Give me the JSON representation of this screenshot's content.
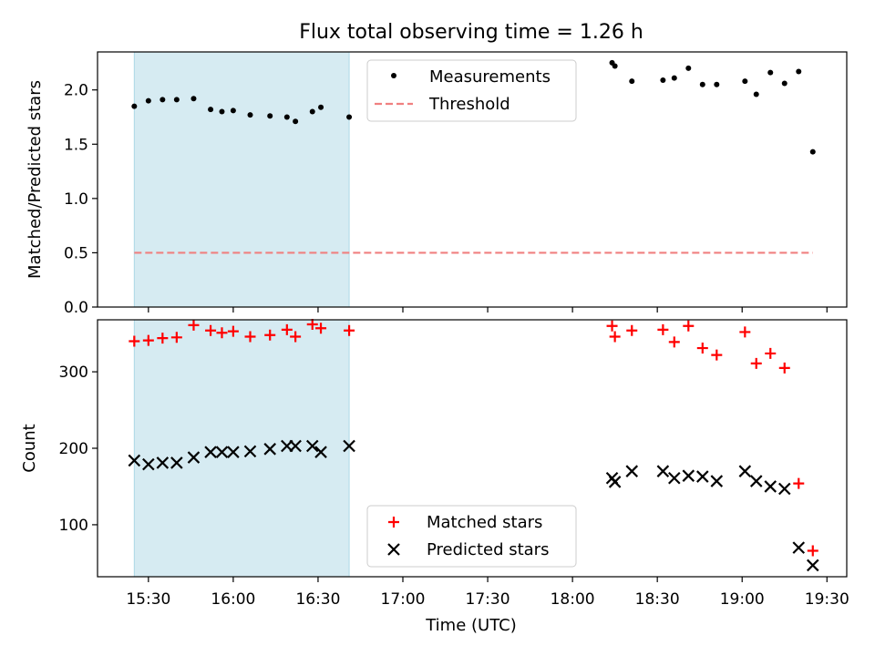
{
  "chart_data": {
    "title": "Flux total observing time = 1.26 h",
    "xlabel": "Time (UTC)",
    "x_ticks": [
      "15:30",
      "16:00",
      "16:30",
      "17:00",
      "17:30",
      "18:00",
      "18:30",
      "19:00",
      "19:30"
    ],
    "xlim": [
      "15:12",
      "19:37"
    ],
    "shaded_interval": [
      "15:25",
      "16:41"
    ],
    "shaded_color": "#add8e6",
    "panels": [
      {
        "type": "scatter",
        "ylabel": "Matched/Predicted stars",
        "ylim": [
          0.0,
          2.35
        ],
        "y_ticks": [
          "0.0",
          "0.5",
          "1.0",
          "1.5",
          "2.0"
        ],
        "legend_position": "upper-center",
        "series": [
          {
            "name": "Measurements",
            "marker": "dot",
            "color": "#000000",
            "points": [
              {
                "x": "15:25",
                "y": 1.85
              },
              {
                "x": "15:30",
                "y": 1.9
              },
              {
                "x": "15:35",
                "y": 1.91
              },
              {
                "x": "15:40",
                "y": 1.91
              },
              {
                "x": "15:46",
                "y": 1.92
              },
              {
                "x": "15:52",
                "y": 1.82
              },
              {
                "x": "15:56",
                "y": 1.8
              },
              {
                "x": "16:00",
                "y": 1.81
              },
              {
                "x": "16:06",
                "y": 1.77
              },
              {
                "x": "16:13",
                "y": 1.76
              },
              {
                "x": "16:19",
                "y": 1.75
              },
              {
                "x": "16:22",
                "y": 1.71
              },
              {
                "x": "16:28",
                "y": 1.8
              },
              {
                "x": "16:31",
                "y": 1.84
              },
              {
                "x": "16:41",
                "y": 1.75
              },
              {
                "x": "18:14",
                "y": 2.25
              },
              {
                "x": "18:15",
                "y": 2.22
              },
              {
                "x": "18:21",
                "y": 2.08
              },
              {
                "x": "18:32",
                "y": 2.09
              },
              {
                "x": "18:36",
                "y": 2.11
              },
              {
                "x": "18:41",
                "y": 2.2
              },
              {
                "x": "18:46",
                "y": 2.05
              },
              {
                "x": "18:51",
                "y": 2.05
              },
              {
                "x": "19:01",
                "y": 2.08
              },
              {
                "x": "19:05",
                "y": 1.96
              },
              {
                "x": "19:10",
                "y": 2.16
              },
              {
                "x": "19:15",
                "y": 2.06
              },
              {
                "x": "19:20",
                "y": 2.17
              },
              {
                "x": "19:25",
                "y": 1.43
              }
            ]
          },
          {
            "name": "Threshold",
            "line": "dashed",
            "color": "#f08080",
            "points": [
              {
                "x": "15:25",
                "y": 0.5
              },
              {
                "x": "19:25",
                "y": 0.5
              }
            ]
          }
        ]
      },
      {
        "type": "scatter",
        "ylabel": "Count",
        "ylim": [
          32,
          368
        ],
        "y_ticks": [
          "100",
          "200",
          "300"
        ],
        "legend_position": "lower-center",
        "series": [
          {
            "name": "Matched stars",
            "marker": "plus",
            "color": "#ff0000",
            "points": [
              {
                "x": "15:25",
                "y": 340
              },
              {
                "x": "15:30",
                "y": 341
              },
              {
                "x": "15:35",
                "y": 344
              },
              {
                "x": "15:40",
                "y": 345
              },
              {
                "x": "15:46",
                "y": 361
              },
              {
                "x": "15:52",
                "y": 354
              },
              {
                "x": "15:56",
                "y": 351
              },
              {
                "x": "16:00",
                "y": 353
              },
              {
                "x": "16:06",
                "y": 346
              },
              {
                "x": "16:13",
                "y": 348
              },
              {
                "x": "16:19",
                "y": 355
              },
              {
                "x": "16:22",
                "y": 346
              },
              {
                "x": "16:28",
                "y": 362
              },
              {
                "x": "16:31",
                "y": 357
              },
              {
                "x": "16:41",
                "y": 354
              },
              {
                "x": "18:14",
                "y": 360
              },
              {
                "x": "18:15",
                "y": 346
              },
              {
                "x": "18:21",
                "y": 354
              },
              {
                "x": "18:32",
                "y": 355
              },
              {
                "x": "18:36",
                "y": 339
              },
              {
                "x": "18:41",
                "y": 360
              },
              {
                "x": "18:46",
                "y": 331
              },
              {
                "x": "18:51",
                "y": 322
              },
              {
                "x": "19:01",
                "y": 352
              },
              {
                "x": "19:05",
                "y": 311
              },
              {
                "x": "19:10",
                "y": 324
              },
              {
                "x": "19:15",
                "y": 305
              },
              {
                "x": "19:20",
                "y": 154
              },
              {
                "x": "19:25",
                "y": 66
              }
            ]
          },
          {
            "name": "Predicted stars",
            "marker": "x",
            "color": "#000000",
            "points": [
              {
                "x": "15:25",
                "y": 184
              },
              {
                "x": "15:30",
                "y": 179
              },
              {
                "x": "15:35",
                "y": 181
              },
              {
                "x": "15:40",
                "y": 181
              },
              {
                "x": "15:46",
                "y": 188
              },
              {
                "x": "15:52",
                "y": 195
              },
              {
                "x": "15:56",
                "y": 195
              },
              {
                "x": "16:00",
                "y": 195
              },
              {
                "x": "16:06",
                "y": 196
              },
              {
                "x": "16:13",
                "y": 199
              },
              {
                "x": "16:19",
                "y": 203
              },
              {
                "x": "16:22",
                "y": 203
              },
              {
                "x": "16:28",
                "y": 203
              },
              {
                "x": "16:31",
                "y": 195
              },
              {
                "x": "16:41",
                "y": 203
              },
              {
                "x": "18:14",
                "y": 161
              },
              {
                "x": "18:15",
                "y": 156
              },
              {
                "x": "18:21",
                "y": 170
              },
              {
                "x": "18:32",
                "y": 170
              },
              {
                "x": "18:36",
                "y": 161
              },
              {
                "x": "18:41",
                "y": 164
              },
              {
                "x": "18:46",
                "y": 163
              },
              {
                "x": "18:51",
                "y": 157
              },
              {
                "x": "19:01",
                "y": 170
              },
              {
                "x": "19:05",
                "y": 157
              },
              {
                "x": "19:10",
                "y": 150
              },
              {
                "x": "19:15",
                "y": 147
              },
              {
                "x": "19:20",
                "y": 70
              },
              {
                "x": "19:25",
                "y": 47
              }
            ]
          }
        ]
      }
    ]
  }
}
